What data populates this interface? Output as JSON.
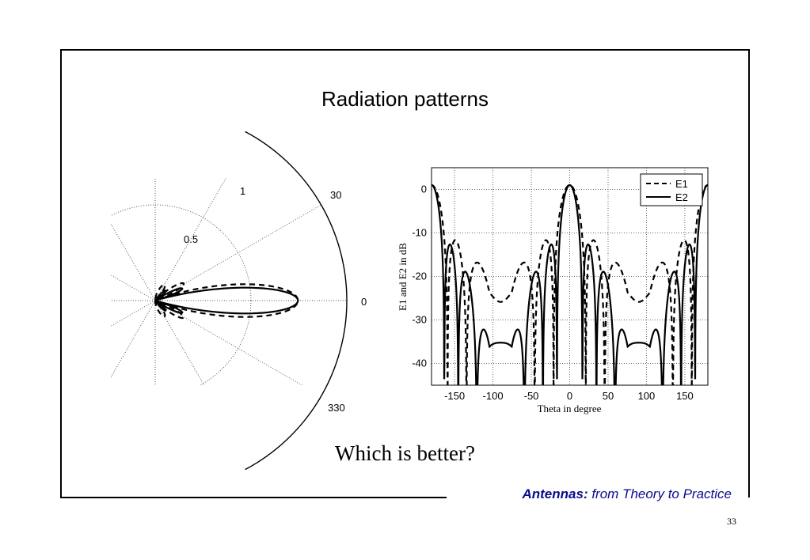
{
  "slide": {
    "title": "Radiation patterns",
    "question": "Which is better?",
    "footer_bold": "Antennas:",
    "footer_rest": " from Theory to Practice",
    "page_number": "33"
  },
  "chart_data": [
    {
      "type": "polar-line",
      "radial_range": [
        0,
        1
      ],
      "radial_tick_labels": [
        "0.5",
        "1"
      ],
      "angle_tick_labels": [
        "30",
        "0",
        "330"
      ],
      "series": [
        {
          "name": "E1",
          "line_style": "dashed",
          "pattern": "cos_product",
          "half_power_pairs": 1
        },
        {
          "name": "E2",
          "line_style": "solid",
          "pattern": "cos_product",
          "half_power_pairs": 2
        }
      ]
    },
    {
      "type": "line",
      "xlabel": "Theta in degree",
      "ylabel": "E1 and E2 in dB",
      "xlim": [
        -180,
        180
      ],
      "ylim": [
        -45,
        5
      ],
      "x_ticks": [
        -150,
        -100,
        -50,
        0,
        50,
        100,
        150
      ],
      "y_ticks": [
        0,
        -10,
        -20,
        -30,
        -40
      ],
      "grid": true,
      "legend_position": "top-right",
      "series": [
        {
          "name": "E1",
          "line_style": "dashed"
        },
        {
          "name": "E2",
          "line_style": "solid"
        }
      ]
    }
  ]
}
